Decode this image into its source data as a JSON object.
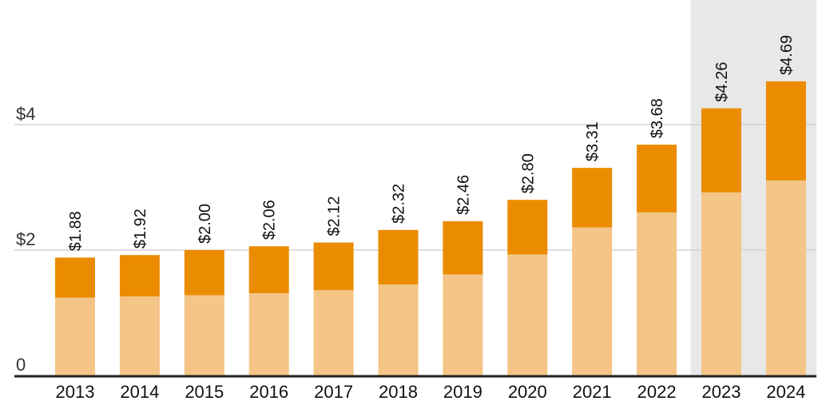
{
  "chart_data": {
    "type": "bar",
    "categories": [
      "2013",
      "2014",
      "2015",
      "2016",
      "2017",
      "2018",
      "2019",
      "2020",
      "2021",
      "2022",
      "2023",
      "2024"
    ],
    "series": [
      {
        "values": [
          1.24,
          1.26,
          1.28,
          1.31,
          1.36,
          1.45,
          1.61,
          1.93,
          2.36,
          2.6,
          2.92,
          3.11
        ],
        "color": "#f4c586"
      },
      {
        "values": [
          0.64,
          0.66,
          0.72,
          0.75,
          0.76,
          0.87,
          0.85,
          0.87,
          0.95,
          1.08,
          1.34,
          1.58
        ],
        "color": "#eb8c00"
      }
    ],
    "totals": [
      1.88,
      1.92,
      2.0,
      2.06,
      2.12,
      2.32,
      2.46,
      2.8,
      3.31,
      3.68,
      4.26,
      4.69
    ],
    "value_labels": [
      "$1.88",
      "$1.92",
      "$2.00",
      "$2.06",
      "$2.12",
      "$2.32",
      "$2.46",
      "$2.80",
      "$3.31",
      "$3.68",
      "$4.26",
      "$4.69"
    ],
    "ylim": [
      0,
      6
    ],
    "yticks": [
      {
        "value": 0,
        "label": "0"
      },
      {
        "value": 2,
        "label": "$2"
      },
      {
        "value": 4,
        "label": "$4"
      },
      {
        "value": 6,
        "label": ""
      }
    ],
    "highlight_categories": [
      "2023",
      "2024"
    ],
    "highlight_color": "#e8e8e8",
    "grid": true,
    "title": "",
    "xlabel": "",
    "ylabel": ""
  }
}
